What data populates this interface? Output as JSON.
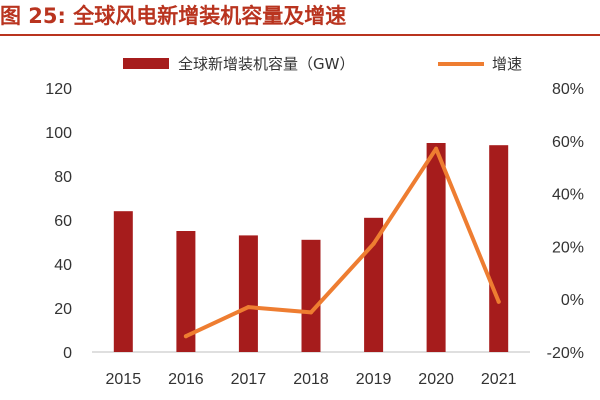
{
  "figure": {
    "label": "图 25:",
    "title": "全球风电新增装机容量及增速"
  },
  "colors": {
    "bar": "#a61c1c",
    "line": "#ee7d31",
    "title": "#b9341f",
    "axis": "#bfbfbf"
  },
  "chart_data": {
    "type": "bar+line",
    "title": "全球风电新增装机容量及增速",
    "categories": [
      "2015",
      "2016",
      "2017",
      "2018",
      "2019",
      "2020",
      "2021"
    ],
    "series": [
      {
        "name": "全球新增装机容量（GW）",
        "type": "bar",
        "axis": "left",
        "values": [
          64,
          55,
          53,
          51,
          61,
          95,
          94
        ]
      },
      {
        "name": "增速",
        "type": "line",
        "axis": "right",
        "values": [
          null,
          -14,
          -3,
          -5,
          21,
          57,
          -1
        ]
      }
    ],
    "y_left": {
      "min": 0,
      "max": 120,
      "ticks": [
        "0",
        "20",
        "40",
        "60",
        "80",
        "100",
        "120"
      ]
    },
    "y_right": {
      "min": -20,
      "max": 80,
      "ticks": [
        "-20%",
        "0%",
        "20%",
        "40%",
        "60%",
        "80%"
      ]
    },
    "legend": {
      "position": "top",
      "items": [
        "全球新增装机容量（GW）",
        "增速"
      ]
    }
  }
}
